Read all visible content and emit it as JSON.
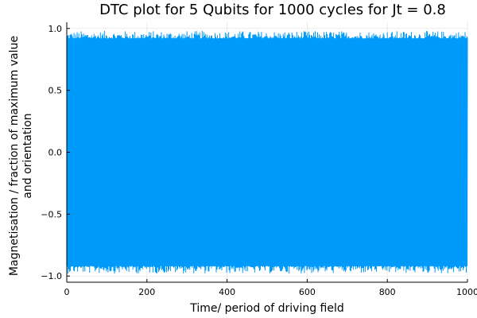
{
  "chart_data": {
    "type": "line",
    "title": "DTC plot for 5 Qubits for 1000 cycles for Jt = 0.8",
    "xlabel": "Time/ period of driving field",
    "ylabel": [
      "Magnetisation / fraction of maximum value",
      "and orientation"
    ],
    "xlim": [
      0,
      1000
    ],
    "ylim": [
      -1.05,
      1.05
    ],
    "xticks": [
      0,
      200,
      400,
      600,
      800,
      1000
    ],
    "xtick_labels": [
      "0",
      "200",
      "400",
      "600",
      "800",
      "1000"
    ],
    "yticks": [
      -1.0,
      -0.5,
      0.0,
      0.5,
      1.0
    ],
    "ytick_labels": [
      "−1.0",
      "−0.5",
      "0.0",
      "0.5",
      "1.0"
    ],
    "grid": true,
    "legend": "none",
    "colors": {
      "series": "#009AFA"
    },
    "series": [
      {
        "description": "Magnetisation alternates sign every period (discrete time crystal), with envelope approximately ±0.94–0.98 over 1000 cycles",
        "x_start": 0,
        "x_end": 1000,
        "x_step": 1,
        "amplitude_min": 0.92,
        "amplitude_max": 0.98,
        "alternating_sign": true
      }
    ]
  }
}
